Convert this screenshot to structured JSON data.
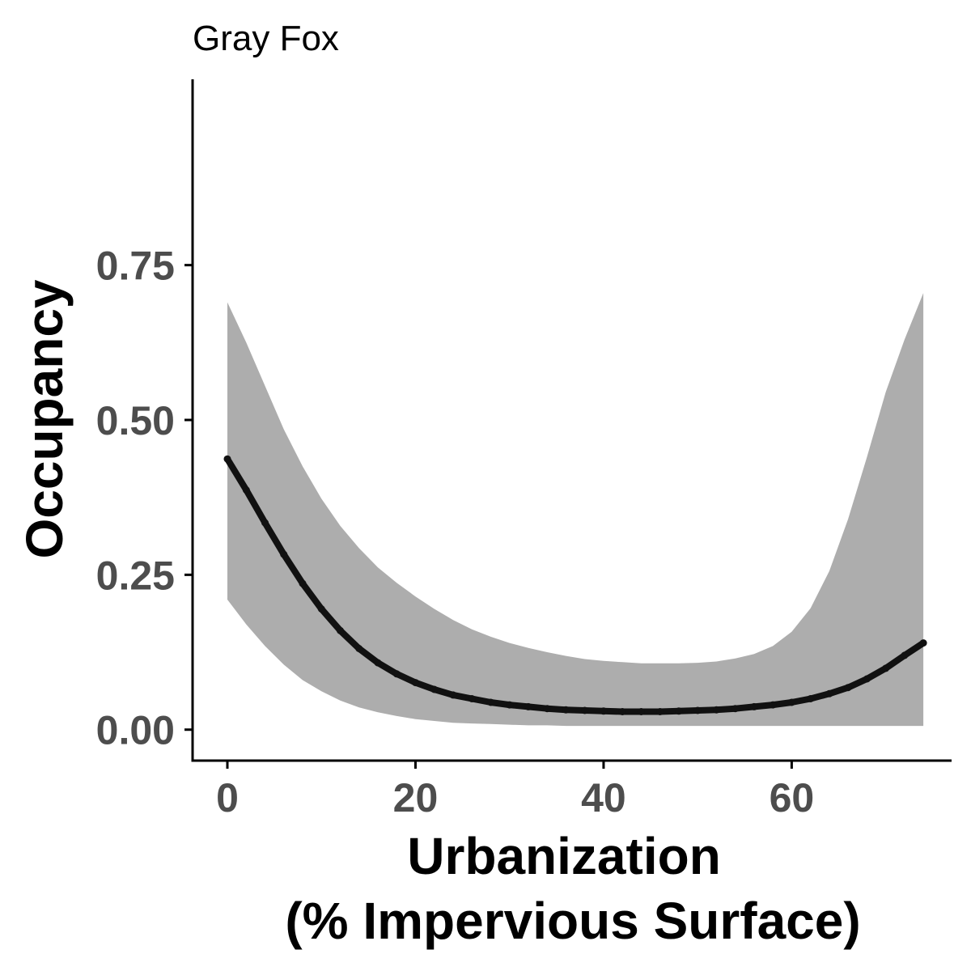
{
  "chart_data": {
    "type": "line",
    "title": "Gray Fox",
    "xlabel": [
      "Urbanization",
      "(% Impervious Surface)"
    ],
    "ylabel": "Occupancy",
    "xlim": [
      -3.7,
      77
    ],
    "ylim": [
      -0.05,
      1.05
    ],
    "x_ticks": [
      0,
      20,
      40,
      60
    ],
    "x_tick_labels": [
      "0",
      "20",
      "40",
      "60"
    ],
    "y_ticks": [
      0.0,
      0.25,
      0.5,
      0.75
    ],
    "y_tick_labels": [
      "0.00",
      "0.25",
      "0.50",
      "0.75"
    ],
    "grid": false,
    "legend": "none",
    "series": [
      {
        "x": [
          0,
          2,
          4,
          6,
          8,
          10,
          12,
          14,
          16,
          18,
          20,
          22,
          24,
          26,
          28,
          30,
          32,
          34,
          36,
          38,
          40,
          42,
          44,
          46,
          48,
          50,
          52,
          54,
          56,
          58,
          60,
          62,
          64,
          66,
          68,
          70,
          72,
          74
        ],
        "y": [
          0.437,
          0.387,
          0.334,
          0.283,
          0.236,
          0.195,
          0.16,
          0.131,
          0.108,
          0.09,
          0.076,
          0.065,
          0.056,
          0.05,
          0.044,
          0.04,
          0.037,
          0.034,
          0.032,
          0.031,
          0.03,
          0.029,
          0.029,
          0.029,
          0.03,
          0.031,
          0.032,
          0.034,
          0.037,
          0.04,
          0.044,
          0.05,
          0.058,
          0.068,
          0.082,
          0.099,
          0.12,
          0.14
        ],
        "lower": [
          0.21,
          0.17,
          0.135,
          0.105,
          0.08,
          0.062,
          0.047,
          0.036,
          0.028,
          0.022,
          0.017,
          0.014,
          0.011,
          0.01,
          0.009,
          0.008,
          0.007,
          0.007,
          0.006,
          0.006,
          0.006,
          0.006,
          0.006,
          0.006,
          0.006,
          0.006,
          0.006,
          0.006,
          0.006,
          0.006,
          0.006,
          0.006,
          0.006,
          0.006,
          0.006,
          0.006,
          0.006,
          0.006
        ],
        "upper": [
          0.69,
          0.625,
          0.555,
          0.485,
          0.425,
          0.373,
          0.329,
          0.293,
          0.262,
          0.237,
          0.215,
          0.195,
          0.177,
          0.162,
          0.15,
          0.14,
          0.132,
          0.125,
          0.119,
          0.114,
          0.111,
          0.109,
          0.107,
          0.107,
          0.107,
          0.108,
          0.11,
          0.115,
          0.122,
          0.135,
          0.158,
          0.196,
          0.256,
          0.34,
          0.44,
          0.545,
          0.63,
          0.705
        ],
        "line_color": "#111111",
        "ribbon_color": "#adadad"
      }
    ]
  },
  "colors": {
    "axis": "#000000",
    "tick_label": "#4d4d4d"
  }
}
